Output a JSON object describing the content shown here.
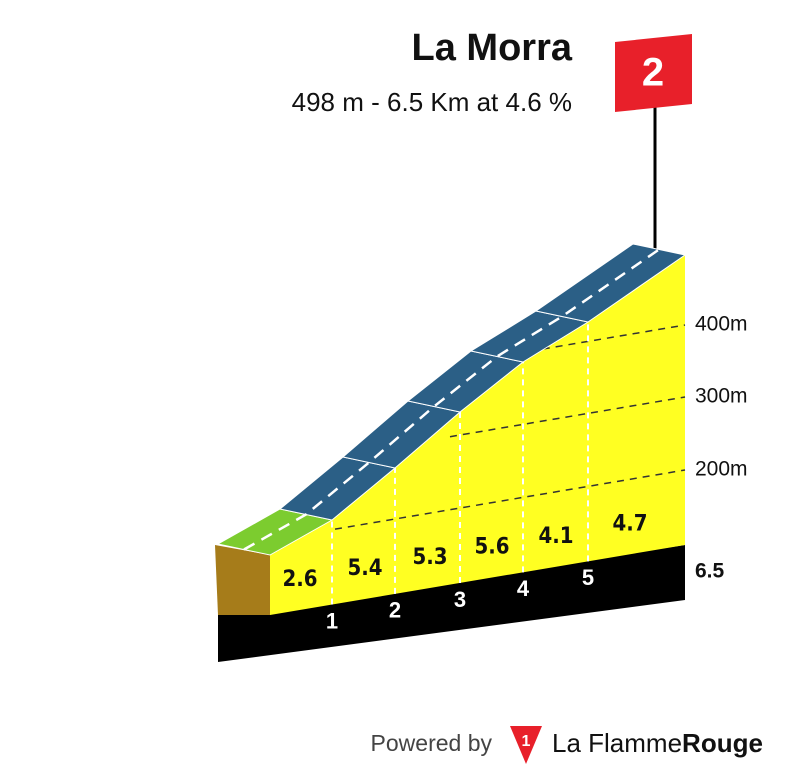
{
  "header": {
    "title": "La Morra",
    "subtitle": "498 m - 6.5 Km at 4.6 %"
  },
  "category": "2",
  "altitude_labels": [
    "400m",
    "300m",
    "200m"
  ],
  "finish_km": "6.5",
  "gradients": [
    "2.6",
    "5.4",
    "5.3",
    "5.6",
    "4.1",
    "4.7"
  ],
  "km_markers": [
    "1",
    "2",
    "3",
    "4",
    "5"
  ],
  "footer": {
    "powered_by": "Powered by",
    "logo_mark": "1",
    "brand": "La Flamme",
    "brand_bold": "Rouge"
  }
}
